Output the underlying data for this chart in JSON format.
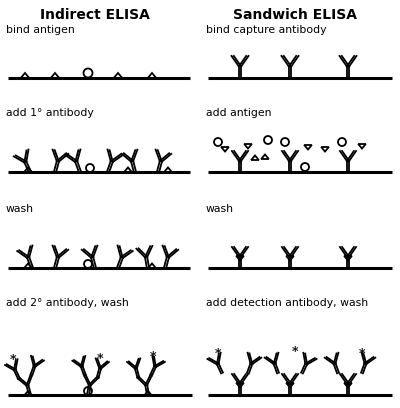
{
  "title_left": "Indirect ELISA",
  "title_right": "Sandwich ELISA",
  "bg_color": "#ffffff",
  "text_color": "#000000",
  "step_labels_left": [
    "bind antigen",
    "add 1° antibody",
    "wash",
    "add 2° antibody, wash"
  ],
  "step_labels_right": [
    "bind capture antibody",
    "add antigen",
    "wash",
    "add detection antibody, wash"
  ],
  "fig_width": 4.0,
  "fig_height": 4.08,
  "dpi": 100,
  "lw_line": 1.3,
  "lw_surf": 2.2
}
